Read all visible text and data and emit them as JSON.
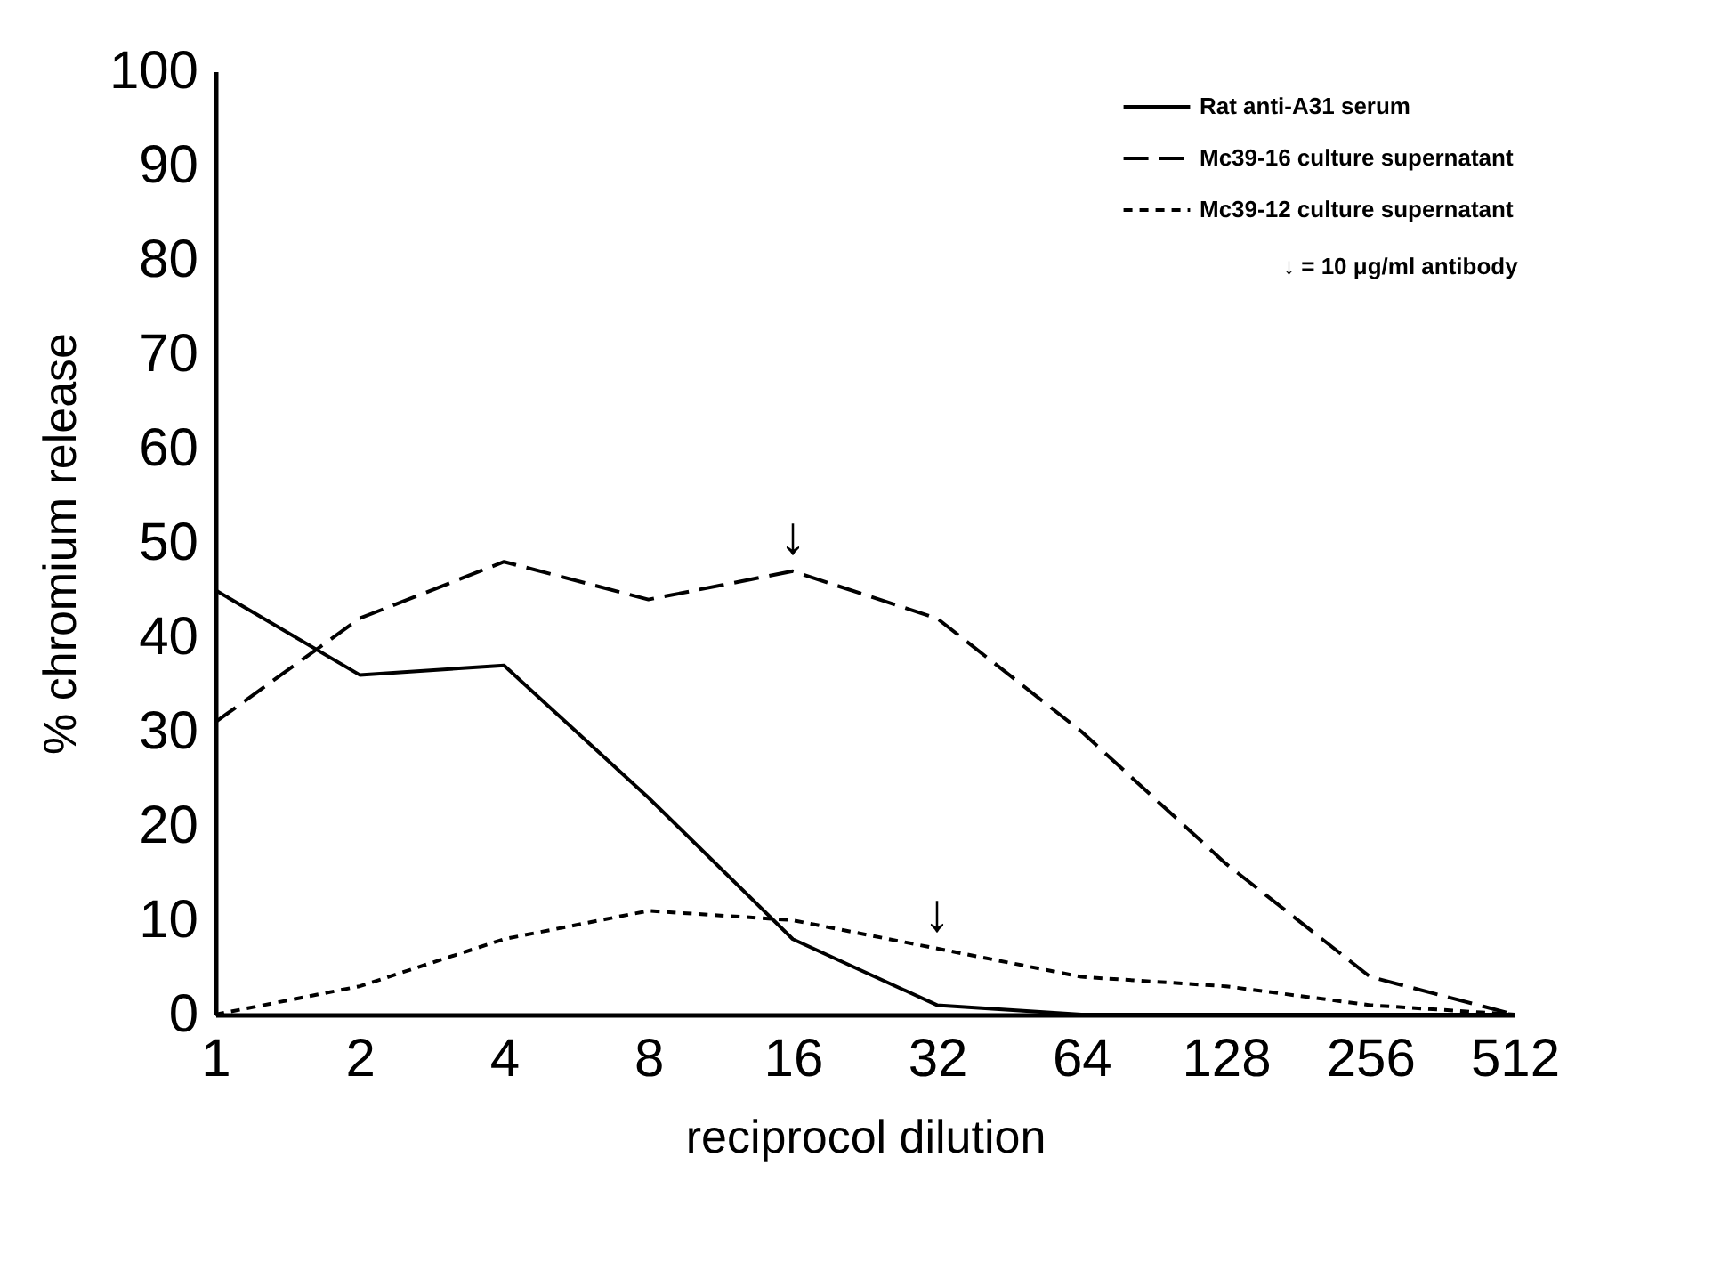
{
  "chart_data": {
    "type": "line",
    "xlabel": "reciprocol dilution",
    "ylabel": "% chromium release",
    "categories": [
      "1",
      "2",
      "4",
      "8",
      "16",
      "32",
      "64",
      "128",
      "256",
      "512"
    ],
    "series": [
      {
        "name": "Rat anti-A31 serum",
        "color": "#000000",
        "line_style": "solid",
        "values": [
          45,
          36,
          37,
          23,
          8,
          1,
          0,
          0,
          0,
          0
        ]
      },
      {
        "name": "Mc39-16 culture supernatant",
        "color": "#000000",
        "line_style": "dashed",
        "values": [
          31,
          42,
          48,
          44,
          47,
          42,
          30,
          16,
          4,
          0
        ]
      },
      {
        "name": "Mc39-12 culture supernatant",
        "color": "#000000",
        "line_style": "dotted",
        "values": [
          0,
          3,
          8,
          11,
          10,
          7,
          4,
          3,
          1,
          0
        ]
      }
    ],
    "ylim": [
      0,
      100
    ],
    "yticks": [
      0,
      10,
      20,
      30,
      40,
      50,
      60,
      70,
      80,
      90,
      100
    ],
    "annotations": [
      {
        "text": "↓",
        "x": "16",
        "y": 47
      },
      {
        "text": "↓",
        "x": "32",
        "y": 7
      },
      "↓ = 10 μg/ml antibody"
    ],
    "grid": false,
    "legend": "top right",
    "marker": "none"
  }
}
